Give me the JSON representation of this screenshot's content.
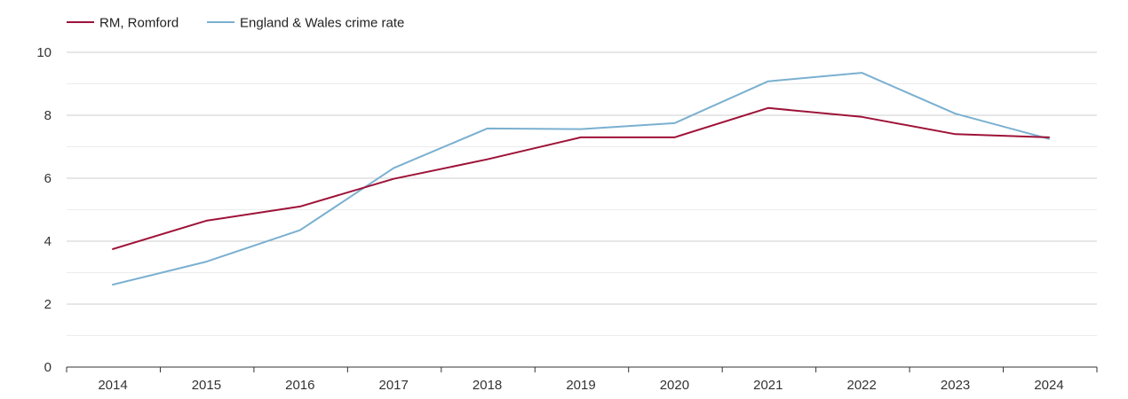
{
  "chart_data": {
    "type": "line",
    "x": [
      "2014",
      "2015",
      "2016",
      "2017",
      "2018",
      "2019",
      "2020",
      "2021",
      "2022",
      "2023",
      "2024"
    ],
    "series": [
      {
        "name": "RM, Romford",
        "color": "#9e1238",
        "values": [
          3.75,
          4.65,
          5.1,
          5.98,
          6.6,
          7.3,
          7.3,
          8.23,
          7.95,
          7.4,
          7.3
        ]
      },
      {
        "name": "England & Wales crime rate",
        "color": "#7ab0d0",
        "values": [
          2.62,
          3.35,
          4.35,
          6.32,
          7.58,
          7.56,
          7.75,
          9.08,
          9.35,
          8.05,
          7.25
        ]
      }
    ],
    "ylim": [
      0,
      10
    ],
    "yticks": [
      "0",
      "2",
      "4",
      "6",
      "8",
      "10"
    ],
    "grid": true,
    "legend_position": "top-left"
  }
}
